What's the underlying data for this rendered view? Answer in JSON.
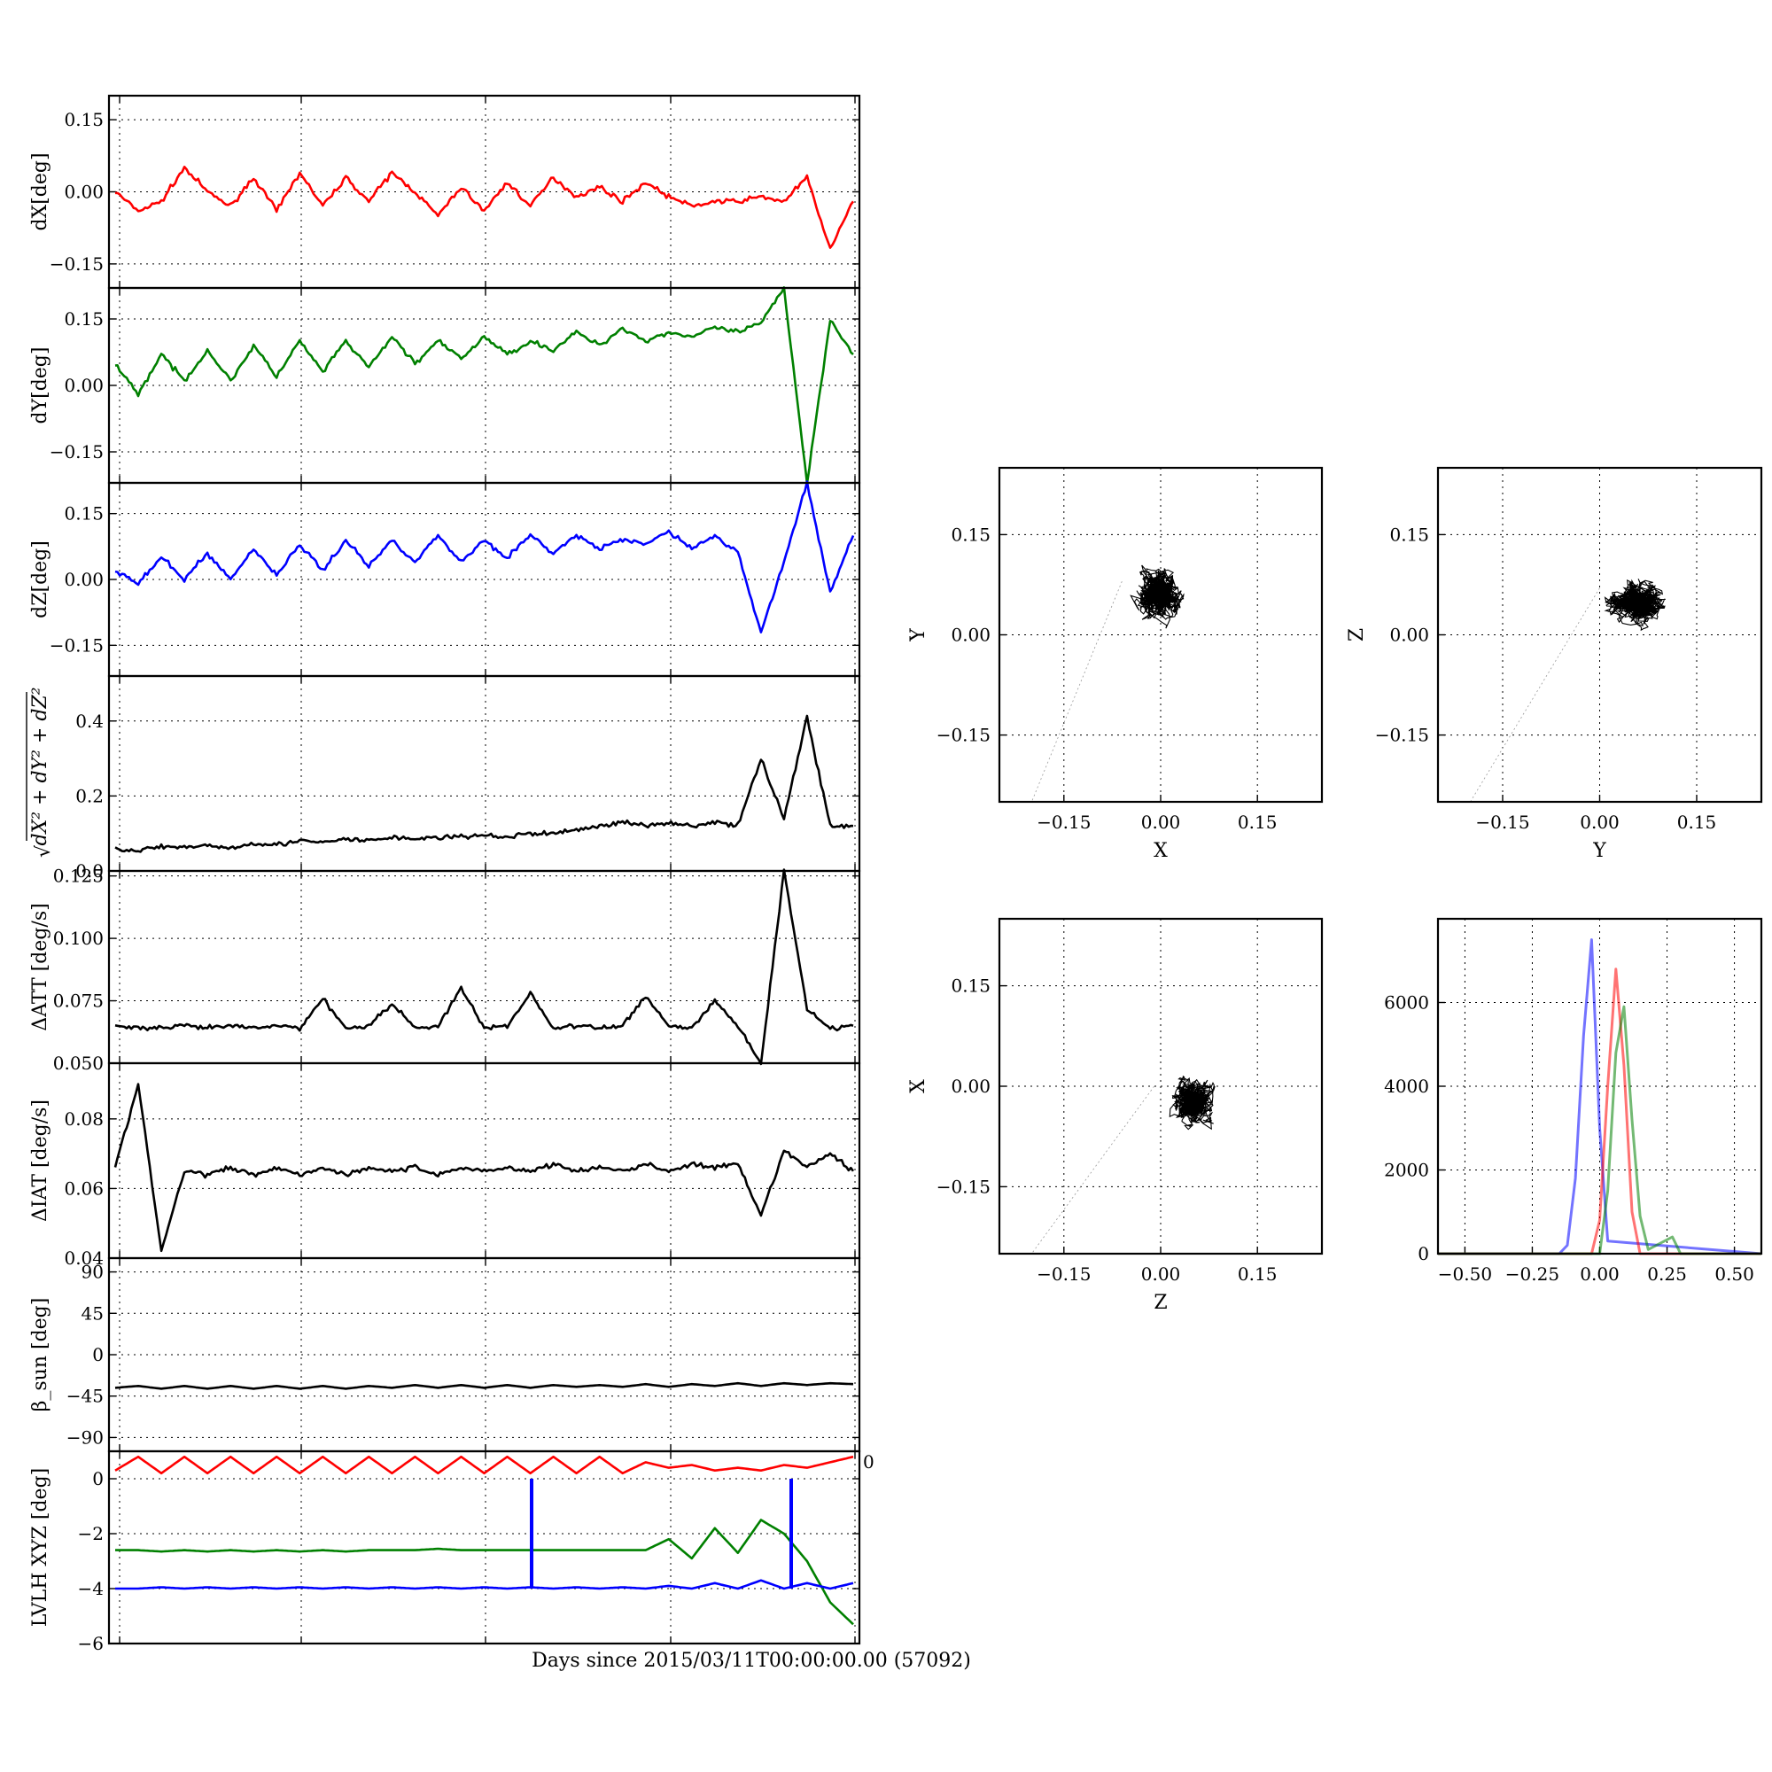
{
  "figure": {
    "xlabel": "Days since 2015/03/11T00:00:00.00 (57092)"
  },
  "colors": {
    "red": "#ff0000",
    "green": "#008000",
    "blue": "#0000ff",
    "black": "#000000"
  },
  "chart_data": [
    {
      "id": "dx",
      "type": "line",
      "ylabel": "dX[deg]",
      "ylim": [
        -0.2,
        0.2
      ],
      "yticks": [
        0.15,
        0.0,
        -0.15
      ],
      "yticklabels": [
        "0.15",
        "0.00",
        "−0.15"
      ],
      "grid": true,
      "series": [
        {
          "color": "#ff0000",
          "values": [
            0,
            -0.04,
            -0.02,
            0.05,
            0.0,
            -0.03,
            0.03,
            -0.04,
            0.04,
            -0.03,
            0.03,
            -0.02,
            0.04,
            0.0,
            -0.05,
            0.01,
            -0.04,
            0.02,
            -0.03,
            0.03,
            -0.01,
            0.01,
            -0.02,
            0.02,
            -0.01,
            -0.03,
            -0.02,
            -0.02,
            -0.01,
            -0.02,
            0.03,
            -0.12,
            -0.02
          ]
        }
      ]
    },
    {
      "id": "dy",
      "type": "line",
      "ylabel": "dY[deg]",
      "ylim": [
        -0.22,
        0.22
      ],
      "yticks": [
        0.15,
        0.0,
        -0.15
      ],
      "yticklabels": [
        "0.15",
        "0.00",
        "−0.15"
      ],
      "grid": true,
      "series": [
        {
          "color": "#008000",
          "values": [
            0.05,
            -0.02,
            0.07,
            0.01,
            0.08,
            0.01,
            0.09,
            0.02,
            0.1,
            0.03,
            0.1,
            0.04,
            0.11,
            0.05,
            0.1,
            0.06,
            0.11,
            0.07,
            0.1,
            0.08,
            0.12,
            0.09,
            0.13,
            0.1,
            0.12,
            0.11,
            0.13,
            0.12,
            0.14,
            0.22,
            -0.22,
            0.15,
            0.07
          ]
        }
      ]
    },
    {
      "id": "dz",
      "type": "line",
      "ylabel": "dZ[deg]",
      "ylim": [
        -0.22,
        0.22
      ],
      "yticks": [
        0.15,
        0.0,
        -0.15
      ],
      "yticklabels": [
        "0.15",
        "0.00",
        "−0.15"
      ],
      "grid": true,
      "series": [
        {
          "color": "#0000ff",
          "values": [
            0.02,
            -0.01,
            0.05,
            0.0,
            0.06,
            0.0,
            0.07,
            0.01,
            0.08,
            0.02,
            0.09,
            0.03,
            0.09,
            0.04,
            0.1,
            0.04,
            0.09,
            0.05,
            0.1,
            0.06,
            0.1,
            0.07,
            0.09,
            0.08,
            0.11,
            0.07,
            0.1,
            0.06,
            -0.12,
            0.04,
            0.22,
            -0.03,
            0.1
          ]
        }
      ]
    },
    {
      "id": "norm",
      "type": "line",
      "ylabel": "√(dX²+dY²+dZ²)",
      "ylim": [
        0,
        0.52
      ],
      "yticks": [
        0.4,
        0.2,
        0.0
      ],
      "yticklabels": [
        "0.4",
        "0.2",
        "0.0"
      ],
      "grid": true,
      "series": [
        {
          "color": "#000000",
          "values": [
            0.06,
            0.055,
            0.065,
            0.06,
            0.07,
            0.06,
            0.075,
            0.07,
            0.08,
            0.075,
            0.085,
            0.08,
            0.09,
            0.085,
            0.09,
            0.09,
            0.095,
            0.09,
            0.1,
            0.1,
            0.11,
            0.12,
            0.13,
            0.12,
            0.13,
            0.12,
            0.13,
            0.12,
            0.3,
            0.14,
            0.41,
            0.12,
            0.12
          ]
        }
      ]
    },
    {
      "id": "datt",
      "type": "line",
      "ylabel": "ΔATT [deg/s]",
      "ylim": [
        0.05,
        0.127
      ],
      "yticks": [
        0.125,
        0.1,
        0.075,
        0.05
      ],
      "yticklabels": [
        "0.125",
        "0.100",
        "0.075",
        "0.050"
      ],
      "grid": true,
      "series": [
        {
          "color": "#000000",
          "values": [
            0.065,
            0.064,
            0.064,
            0.065,
            0.064,
            0.065,
            0.064,
            0.065,
            0.064,
            0.076,
            0.064,
            0.065,
            0.074,
            0.064,
            0.065,
            0.08,
            0.064,
            0.065,
            0.078,
            0.064,
            0.065,
            0.064,
            0.065,
            0.077,
            0.065,
            0.064,
            0.075,
            0.065,
            0.05,
            0.127,
            0.072,
            0.064,
            0.065
          ]
        }
      ]
    },
    {
      "id": "diat",
      "type": "line",
      "ylabel": "ΔIAT [deg/s]",
      "ylim": [
        0.04,
        0.096
      ],
      "yticks": [
        0.08,
        0.06,
        0.04
      ],
      "yticklabels": [
        "0.08",
        "0.06",
        "0.04"
      ],
      "grid": true,
      "series": [
        {
          "color": "#000000",
          "values": [
            0.066,
            0.09,
            0.042,
            0.065,
            0.064,
            0.066,
            0.064,
            0.066,
            0.064,
            0.066,
            0.064,
            0.066,
            0.065,
            0.066,
            0.064,
            0.066,
            0.065,
            0.066,
            0.065,
            0.067,
            0.065,
            0.066,
            0.065,
            0.067,
            0.065,
            0.067,
            0.066,
            0.067,
            0.052,
            0.071,
            0.066,
            0.07,
            0.065
          ]
        }
      ]
    },
    {
      "id": "beta",
      "type": "line",
      "ylabel": "β_sun [deg]",
      "ylim": [
        -105,
        105
      ],
      "yticks": [
        90,
        45,
        0,
        -45,
        -90
      ],
      "yticklabels": [
        "90",
        "45",
        "0",
        "−45",
        "−90"
      ],
      "grid": true,
      "series": [
        {
          "color": "#000000",
          "values": [
            -36,
            -34,
            -37,
            -34,
            -37,
            -34,
            -37,
            -34,
            -37,
            -34,
            -37,
            -34,
            -36,
            -33,
            -36,
            -33,
            -36,
            -33,
            -36,
            -33,
            -35,
            -33,
            -35,
            -32,
            -35,
            -32,
            -34,
            -31,
            -34,
            -31,
            -33,
            -31,
            -32
          ]
        }
      ]
    },
    {
      "id": "lvlh",
      "type": "line",
      "ylabel": "LVLH XYZ [deg]",
      "ylim": [
        -6,
        1
      ],
      "yticks": [
        0,
        -2,
        -4,
        -6
      ],
      "yticklabels": [
        "0",
        "−2",
        "−4",
        "−6"
      ],
      "extra_tick_label": "0",
      "grid": true,
      "series": [
        {
          "color": "#ff0000",
          "values": [
            0.3,
            0.8,
            0.2,
            0.8,
            0.2,
            0.8,
            0.2,
            0.8,
            0.2,
            0.8,
            0.2,
            0.8,
            0.2,
            0.8,
            0.2,
            0.8,
            0.2,
            0.8,
            0.2,
            0.8,
            0.2,
            0.8,
            0.2,
            0.6,
            0.4,
            0.5,
            0.3,
            0.4,
            0.3,
            0.5,
            0.4,
            0.6,
            0.8
          ]
        },
        {
          "color": "#008000",
          "values": [
            -2.6,
            -2.6,
            -2.65,
            -2.6,
            -2.65,
            -2.6,
            -2.65,
            -2.6,
            -2.65,
            -2.6,
            -2.65,
            -2.6,
            -2.6,
            -2.6,
            -2.55,
            -2.6,
            -2.6,
            -2.6,
            -2.6,
            -2.6,
            -2.6,
            -2.6,
            -2.6,
            -2.6,
            -2.2,
            -2.9,
            -1.8,
            -2.7,
            -1.5,
            -2.0,
            -3.0,
            -4.5,
            -5.3
          ]
        },
        {
          "color": "#0000ff",
          "values": [
            -4.0,
            -4.0,
            -3.95,
            -4.0,
            -3.95,
            -4.0,
            -3.95,
            -4.0,
            -3.95,
            -4.0,
            -3.95,
            -4.0,
            -3.95,
            -4.0,
            -3.95,
            -4.0,
            -3.95,
            -4.0,
            -3.95,
            -4.0,
            -3.95,
            -4.0,
            -3.95,
            -4.0,
            -3.9,
            -4.0,
            -3.8,
            -4.0,
            -3.7,
            -4.0,
            -3.8,
            -4.0,
            -3.8
          ]
        }
      ]
    },
    {
      "id": "xy",
      "type": "scatter",
      "xlabel": "X",
      "ylabel": "Y",
      "xlim": [
        -0.25,
        0.25
      ],
      "ylim": [
        -0.25,
        0.25
      ],
      "xticks": [
        -0.15,
        0.0,
        0.15
      ],
      "xticklabels": [
        "−0.15",
        "0.00",
        "0.15"
      ],
      "yticks": [
        0.15,
        0.0,
        -0.15
      ],
      "yticklabels": [
        "0.15",
        "0.00",
        "−0.15"
      ],
      "grid": true,
      "cluster": {
        "center": [
          0.0,
          0.06
        ],
        "spread": [
          0.04,
          0.05
        ]
      }
    },
    {
      "id": "yz",
      "type": "scatter",
      "xlabel": "Y",
      "ylabel": "Z",
      "xlim": [
        -0.25,
        0.25
      ],
      "ylim": [
        -0.25,
        0.25
      ],
      "xticks": [
        -0.15,
        0.0,
        0.15
      ],
      "xticklabels": [
        "−0.15",
        "0.00",
        "0.15"
      ],
      "yticks": [
        0.15,
        0.0,
        -0.15
      ],
      "yticklabels": [
        "0.15",
        "0.00",
        "−0.15"
      ],
      "grid": true,
      "cluster": {
        "center": [
          0.06,
          0.05
        ],
        "spread": [
          0.05,
          0.04
        ]
      }
    },
    {
      "id": "zx",
      "type": "scatter",
      "xlabel": "Z",
      "ylabel": "X",
      "xlim": [
        -0.25,
        0.25
      ],
      "ylim": [
        -0.25,
        0.25
      ],
      "xticks": [
        -0.15,
        0.0,
        0.15
      ],
      "xticklabels": [
        "−0.15",
        "0.00",
        "0.15"
      ],
      "yticks": [
        0.15,
        0.0,
        -0.15
      ],
      "yticklabels": [
        "0.15",
        "0.00",
        "−0.15"
      ],
      "grid": true,
      "cluster": {
        "center": [
          0.05,
          -0.02
        ],
        "spread": [
          0.04,
          0.04
        ]
      }
    },
    {
      "id": "hist",
      "type": "histogram",
      "xlim": [
        -0.6,
        0.6
      ],
      "ylim": [
        0,
        8000
      ],
      "xticks": [
        -0.5,
        -0.25,
        0.0,
        0.25,
        0.5
      ],
      "xticklabels": [
        "−0.50",
        "−0.25",
        "0.00",
        "0.25",
        "0.50"
      ],
      "yticks": [
        6000,
        4000,
        2000,
        0
      ],
      "yticklabels": [
        "6000",
        "4000",
        "2000",
        "0"
      ],
      "grid": true,
      "series": [
        {
          "color": "#0000ff",
          "bins": [
            -0.15,
            -0.12,
            -0.09,
            -0.06,
            -0.03,
            0.0,
            0.03
          ],
          "counts": [
            0,
            200,
            1800,
            5200,
            7500,
            3000,
            300
          ]
        },
        {
          "color": "#ff0000",
          "bins": [
            -0.03,
            0.0,
            0.03,
            0.06,
            0.09,
            0.12,
            0.15
          ],
          "counts": [
            0,
            800,
            4000,
            6800,
            4500,
            1000,
            0
          ]
        },
        {
          "color": "#008000",
          "bins": [
            0.0,
            0.03,
            0.06,
            0.09,
            0.12,
            0.15,
            0.18,
            0.27,
            0.3
          ],
          "counts": [
            0,
            1500,
            4800,
            5900,
            3200,
            900,
            100,
            400,
            0
          ]
        }
      ]
    }
  ]
}
